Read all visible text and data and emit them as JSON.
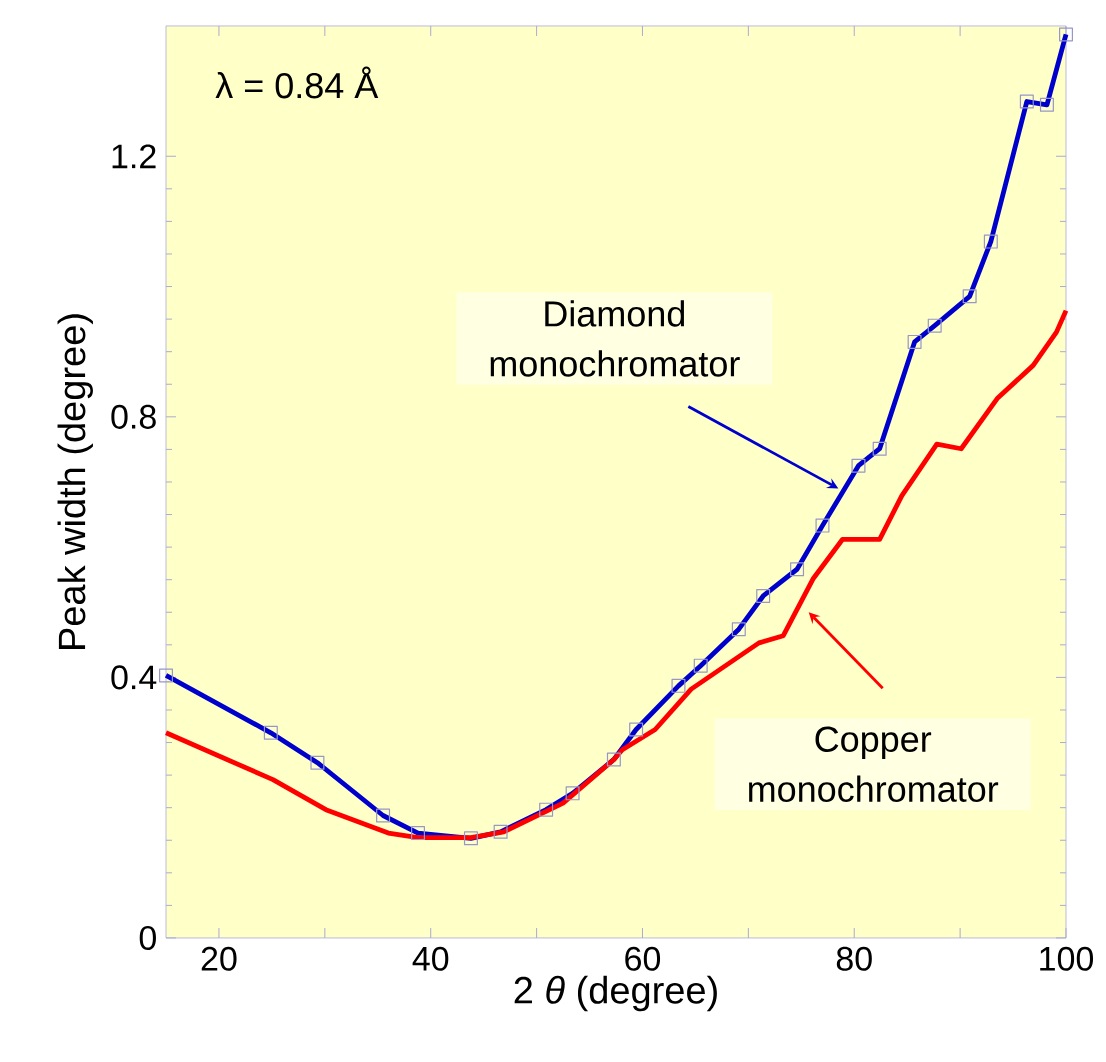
{
  "chart_data": {
    "type": "line",
    "xlabel": "2 *θ* (degree)",
    "ylabel": "Peak width (degree)",
    "xlim": [
      15,
      100
    ],
    "ylim": [
      0,
      1.4
    ],
    "xticks": [
      20,
      {
        "value": 30,
        "label": null
      },
      40,
      {
        "value": 50,
        "label": null
      },
      60,
      {
        "value": 70,
        "label": null
      },
      80,
      {
        "value": 90,
        "label": null
      },
      100
    ],
    "yticks": [
      0,
      0.4,
      0.8,
      1.2
    ],
    "grid": false,
    "line_style": "solid",
    "series": [
      {
        "color": "#0000cc",
        "marker": "square",
        "x": [
          15,
          24.9,
          29.3,
          35.5,
          38.8,
          43.8,
          46.6,
          50.9,
          53.4,
          57.3,
          59.4,
          63.4,
          65.5,
          69.1,
          71.4,
          74.6,
          77.0,
          80.4,
          82.4,
          85.7,
          87.6,
          90.9,
          92.9,
          96.3,
          98.2,
          100
        ],
        "values": [
          0.403,
          0.315,
          0.269,
          0.188,
          0.161,
          0.153,
          0.163,
          0.197,
          0.222,
          0.274,
          0.32,
          0.387,
          0.418,
          0.474,
          0.525,
          0.566,
          0.633,
          0.725,
          0.751,
          0.915,
          0.94,
          0.985,
          1.069,
          1.284,
          1.279,
          1.387
        ]
      },
      {
        "color": "#ff0000",
        "marker": "none",
        "x": [
          15,
          25.1,
          30.1,
          36.0,
          38.8,
          43.8,
          46.9,
          52.5,
          57.3,
          58.1,
          61.2,
          64.6,
          71.0,
          73.3,
          76.1,
          78.9,
          82.4,
          84.5,
          87.8,
          90.1,
          93.5,
          96.9,
          99.1,
          100
        ],
        "values": [
          0.315,
          0.243,
          0.197,
          0.161,
          0.154,
          0.154,
          0.163,
          0.207,
          0.274,
          0.289,
          0.32,
          0.382,
          0.453,
          0.464,
          0.551,
          0.612,
          0.612,
          0.679,
          0.758,
          0.751,
          0.828,
          0.879,
          0.93,
          0.963
        ]
      }
    ],
    "annotations": [
      "λ = 0.84 Å",
      {
        "text": "Diamond monochromator",
        "x": 78.5,
        "y": 0.69
      },
      {
        "text": "Copper monochromator",
        "x": 75.7,
        "y": 0.5
      }
    ]
  }
}
